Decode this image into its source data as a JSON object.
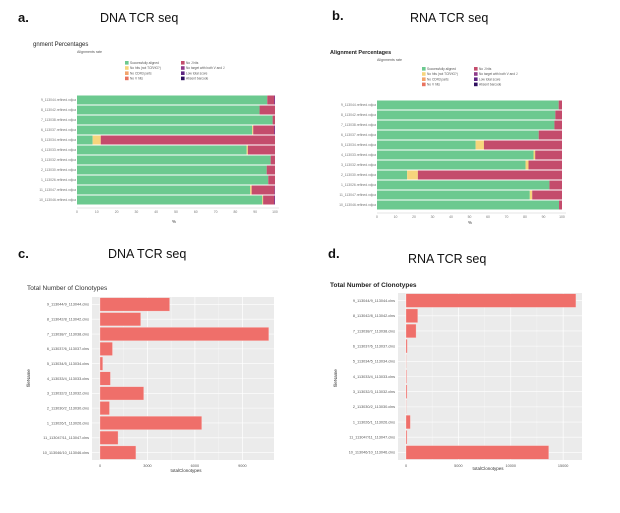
{
  "panels": {
    "a": {
      "letter": "a.",
      "heading": "DNA TCR seq"
    },
    "b": {
      "letter": "b.",
      "heading": "RNA TCR seq"
    },
    "c": {
      "letter": "c.",
      "heading": "DNA TCR seq"
    },
    "d": {
      "letter": "d.",
      "heading": "RNA TCR seq"
    }
  },
  "chart_data": [
    {
      "id": "a",
      "type": "bar",
      "orientation": "horizontal",
      "stacked": true,
      "title": "gnment Percentages",
      "subtitle": "Alignments rate",
      "xlabel": "%",
      "xlim": [
        0,
        100
      ],
      "xticks": [
        "0",
        "10",
        "20",
        "30",
        "40",
        "50",
        "60",
        "70",
        "80",
        "90",
        "100"
      ],
      "grid": false,
      "legend_position": "top",
      "categories": [
        "9_113044.refined.vdjca",
        "8_113042.refined.vdjca",
        "7_113038.refined.vdjca",
        "6_113037.refined.vdjca",
        "5_113034.refined.vdjca",
        "4_113033.refined.vdjca",
        "3_113032.refined.vdjca",
        "2_113030.refined.vdjca",
        "1_113026.refined.vdjca",
        "11_113047.refined.vdjca",
        "10_113046.refined.vdjca"
      ],
      "series": [
        {
          "name": "Successfully aligned",
          "color": "#6cc98f",
          "values": [
            96.1,
            92.2,
            98.8,
            88.5,
            7.9,
            85.7,
            97.8,
            95.8,
            96.6,
            87.5,
            93.6
          ]
        },
        {
          "name": "No hits (not TCR/IG?)",
          "color": "#f7d57c",
          "values": [
            0,
            0,
            0,
            0.5,
            4.1,
            0.6,
            0,
            0,
            0,
            0.7,
            0.4
          ]
        },
        {
          "name": "No CDR3 parts",
          "color": "#f2a46c",
          "values": [
            0,
            0,
            0,
            0,
            0,
            0,
            0,
            0,
            0,
            0,
            0
          ]
        },
        {
          "name": "No V hits",
          "color": "#e8735f",
          "values": [
            0,
            0,
            0,
            0,
            0,
            0,
            0,
            0,
            0,
            0,
            0
          ]
        },
        {
          "name": "No J hits",
          "color": "#c44c6c",
          "values": [
            3.4,
            7.8,
            1.2,
            10.5,
            88.0,
            13.7,
            2.2,
            4.2,
            3.4,
            11.5,
            5.5
          ]
        },
        {
          "name": "No target with both V and J",
          "color": "#8f3b8a",
          "values": [
            0.5,
            0,
            0,
            0.5,
            0,
            0,
            0,
            0,
            0,
            0.3,
            0.5
          ]
        },
        {
          "name": "Low total score",
          "color": "#5d2482",
          "values": [
            0,
            0,
            0,
            0,
            0,
            0,
            0,
            0,
            0,
            0,
            0
          ]
        },
        {
          "name": "Absent barcode",
          "color": "#2e105f",
          "values": [
            0,
            0,
            0,
            0,
            0,
            0,
            0,
            0,
            0,
            0,
            0
          ]
        }
      ]
    },
    {
      "id": "b",
      "type": "bar",
      "orientation": "horizontal",
      "stacked": true,
      "title": "Alignment Percentages",
      "subtitle": "Alignments rate",
      "xlabel": "%",
      "xlim": [
        0,
        100
      ],
      "xticks": [
        "0",
        "10",
        "20",
        "30",
        "40",
        "50",
        "60",
        "70",
        "80",
        "90",
        "100"
      ],
      "grid": false,
      "legend_position": "top",
      "categories": [
        "9_113044.refined.vdjca",
        "8_113042.refined.vdjca",
        "7_113038.refined.vdjca",
        "6_113037.refined.vdjca",
        "5_113034.refined.vdjca",
        "4_113033.refined.vdjca",
        "3_113032.refined.vdjca",
        "2_113030.refined.vdjca",
        "1_113026.refined.vdjca",
        "11_113047.refined.vdjca",
        "10_113046.refined.vdjca"
      ],
      "series": [
        {
          "name": "Successfully aligned",
          "color": "#6cc98f",
          "values": [
            98.2,
            96.4,
            95.9,
            87.4,
            53.3,
            84.6,
            80.3,
            16.3,
            93.2,
            82.6,
            98.4
          ]
        },
        {
          "name": "No hits (not TCR/IG?)",
          "color": "#f7d57c",
          "values": [
            0,
            0,
            0,
            0,
            4.5,
            0.9,
            1.6,
            5.8,
            0,
            1.3,
            0
          ]
        },
        {
          "name": "No CDR3 parts",
          "color": "#f2a46c",
          "values": [
            0,
            0,
            0,
            0,
            0,
            0,
            0,
            0,
            0,
            0,
            0
          ]
        },
        {
          "name": "No V hits",
          "color": "#e8735f",
          "values": [
            0,
            0,
            0,
            0,
            0,
            0,
            0,
            0,
            0,
            0,
            0
          ]
        },
        {
          "name": "No J hits",
          "color": "#c44c6c",
          "values": [
            1.8,
            3.6,
            4.1,
            12.6,
            42.2,
            14.5,
            18.1,
            77.9,
            6.8,
            16.1,
            1.6
          ]
        },
        {
          "name": "No target with both V and J",
          "color": "#8f3b8a",
          "values": [
            0,
            0,
            0,
            0,
            0,
            0,
            0,
            0,
            0,
            0,
            0
          ]
        },
        {
          "name": "Low total score",
          "color": "#5d2482",
          "values": [
            0,
            0,
            0,
            0,
            0,
            0,
            0,
            0,
            0,
            0,
            0
          ]
        },
        {
          "name": "Absent barcode",
          "color": "#2e105f",
          "values": [
            0,
            0,
            0,
            0,
            0,
            0,
            0,
            0,
            0,
            0,
            0
          ]
        }
      ]
    },
    {
      "id": "c",
      "type": "bar",
      "orientation": "horizontal",
      "title": "Total Number of Clonotypes",
      "xlabel": "totalClonotypes",
      "ylabel": "fileName",
      "xlim": [
        0,
        11000
      ],
      "xticks": [
        0,
        3000,
        6000,
        9000
      ],
      "grid": true,
      "color": "#ef6f6a",
      "categories": [
        "9_113044/9_113044.clns",
        "8_113042/8_113042.clns",
        "7_113038/7_113038.clns",
        "6_113037/6_113037.clns",
        "5_113034/5_113034.clns",
        "4_113033/4_113033.clns",
        "3_113032/3_113032.clns",
        "2_113030/2_113030.clns",
        "1_113026/1_113026.clns",
        "11_113047/11_113047.clns",
        "10_113046/10_113046.clns"
      ],
      "values": [
        4400,
        2570,
        10670,
        790,
        170,
        660,
        2760,
        600,
        6430,
        1140,
        2270
      ]
    },
    {
      "id": "d",
      "type": "bar",
      "orientation": "horizontal",
      "title": "Total Number of Clonotypes",
      "xlabel": "totalClonotypes",
      "ylabel": "fileName",
      "xlim": [
        0,
        16800
      ],
      "xticks": [
        0,
        5000,
        10000,
        15000
      ],
      "grid": true,
      "color": "#ef6f6a",
      "categories": [
        "9_113044/9_113044.clns",
        "8_113042/8_113042.clns",
        "7_113038/7_113038.clns",
        "6_113037/6_113037.clns",
        "5_113034/5_113034.clns",
        "4_113033/4_113033.clns",
        "3_113032/3_113032.clns",
        "2_113030/2_113030.clns",
        "1_113026/1_113026.clns",
        "11_113047/11_113047.clns",
        "10_113046/10_113046.clns"
      ],
      "values": [
        16220,
        1120,
        960,
        130,
        30,
        60,
        100,
        10,
        420,
        100,
        13620
      ]
    }
  ]
}
